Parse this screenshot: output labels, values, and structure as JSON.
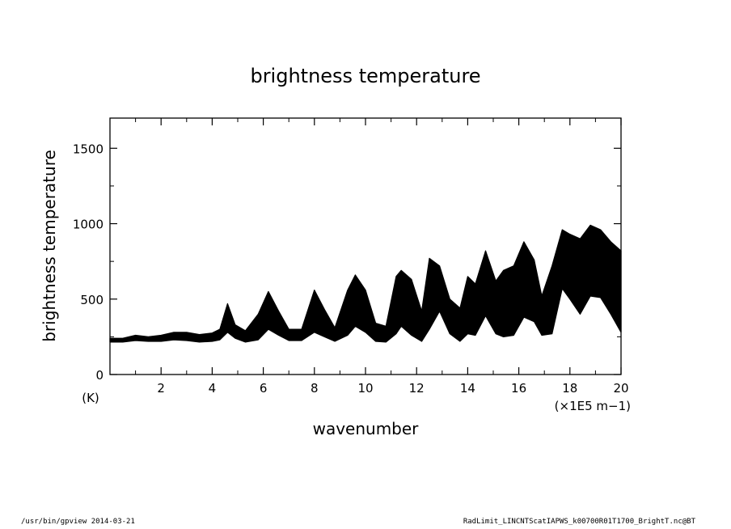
{
  "chart_data": {
    "type": "line",
    "title": "brightness temperature",
    "xlabel": "wavenumber",
    "ylabel": "brightness temperature",
    "x_unit": "(×1E5 m−1)",
    "y_unit": "(K)",
    "xlim": [
      0,
      20
    ],
    "ylim": [
      0,
      1700
    ],
    "x_ticks": [
      2,
      4,
      6,
      8,
      10,
      12,
      14,
      16,
      18,
      20
    ],
    "y_ticks": [
      0,
      500,
      1000,
      1500
    ],
    "series": [
      {
        "x": [
          0,
          0.5,
          1.0,
          1.5,
          2.0,
          2.5,
          3.0,
          3.5,
          4.0,
          4.3,
          4.6,
          4.9,
          5.3,
          5.8,
          6.2,
          6.6,
          7.0,
          7.5,
          8.0,
          8.4,
          8.8,
          9.3,
          9.6,
          10.0,
          10.4,
          10.8,
          11.2,
          11.4,
          11.8,
          12.2,
          12.5,
          12.9,
          13.3,
          13.7,
          14.0,
          14.3,
          14.7,
          15.1,
          15.4,
          15.8,
          16.2,
          16.6,
          16.9,
          17.3,
          17.7,
          18.0,
          18.4,
          18.8,
          19.2,
          19.6,
          20.0
        ],
        "upper": [
          240,
          240,
          260,
          250,
          260,
          280,
          280,
          265,
          275,
          300,
          470,
          330,
          290,
          400,
          550,
          420,
          300,
          300,
          560,
          430,
          310,
          560,
          660,
          560,
          340,
          320,
          650,
          690,
          630,
          420,
          770,
          720,
          500,
          440,
          650,
          600,
          820,
          620,
          690,
          720,
          880,
          760,
          520,
          720,
          960,
          930,
          900,
          990,
          960,
          880,
          820
        ],
        "lower": [
          215,
          215,
          225,
          220,
          220,
          230,
          225,
          215,
          220,
          230,
          280,
          240,
          215,
          230,
          300,
          260,
          225,
          225,
          280,
          250,
          220,
          260,
          320,
          280,
          220,
          215,
          270,
          320,
          260,
          220,
          300,
          420,
          270,
          220,
          270,
          260,
          390,
          270,
          250,
          260,
          380,
          350,
          260,
          270,
          570,
          500,
          400,
          520,
          510,
          400,
          280
        ]
      }
    ],
    "grid": false,
    "legend": "none"
  },
  "footer": {
    "left": "/usr/bin/gpview  2014-03-21",
    "right": "RadLimit_LINCNTScatIAPWS_k00700R01T1700_BrightT.nc@BT"
  }
}
